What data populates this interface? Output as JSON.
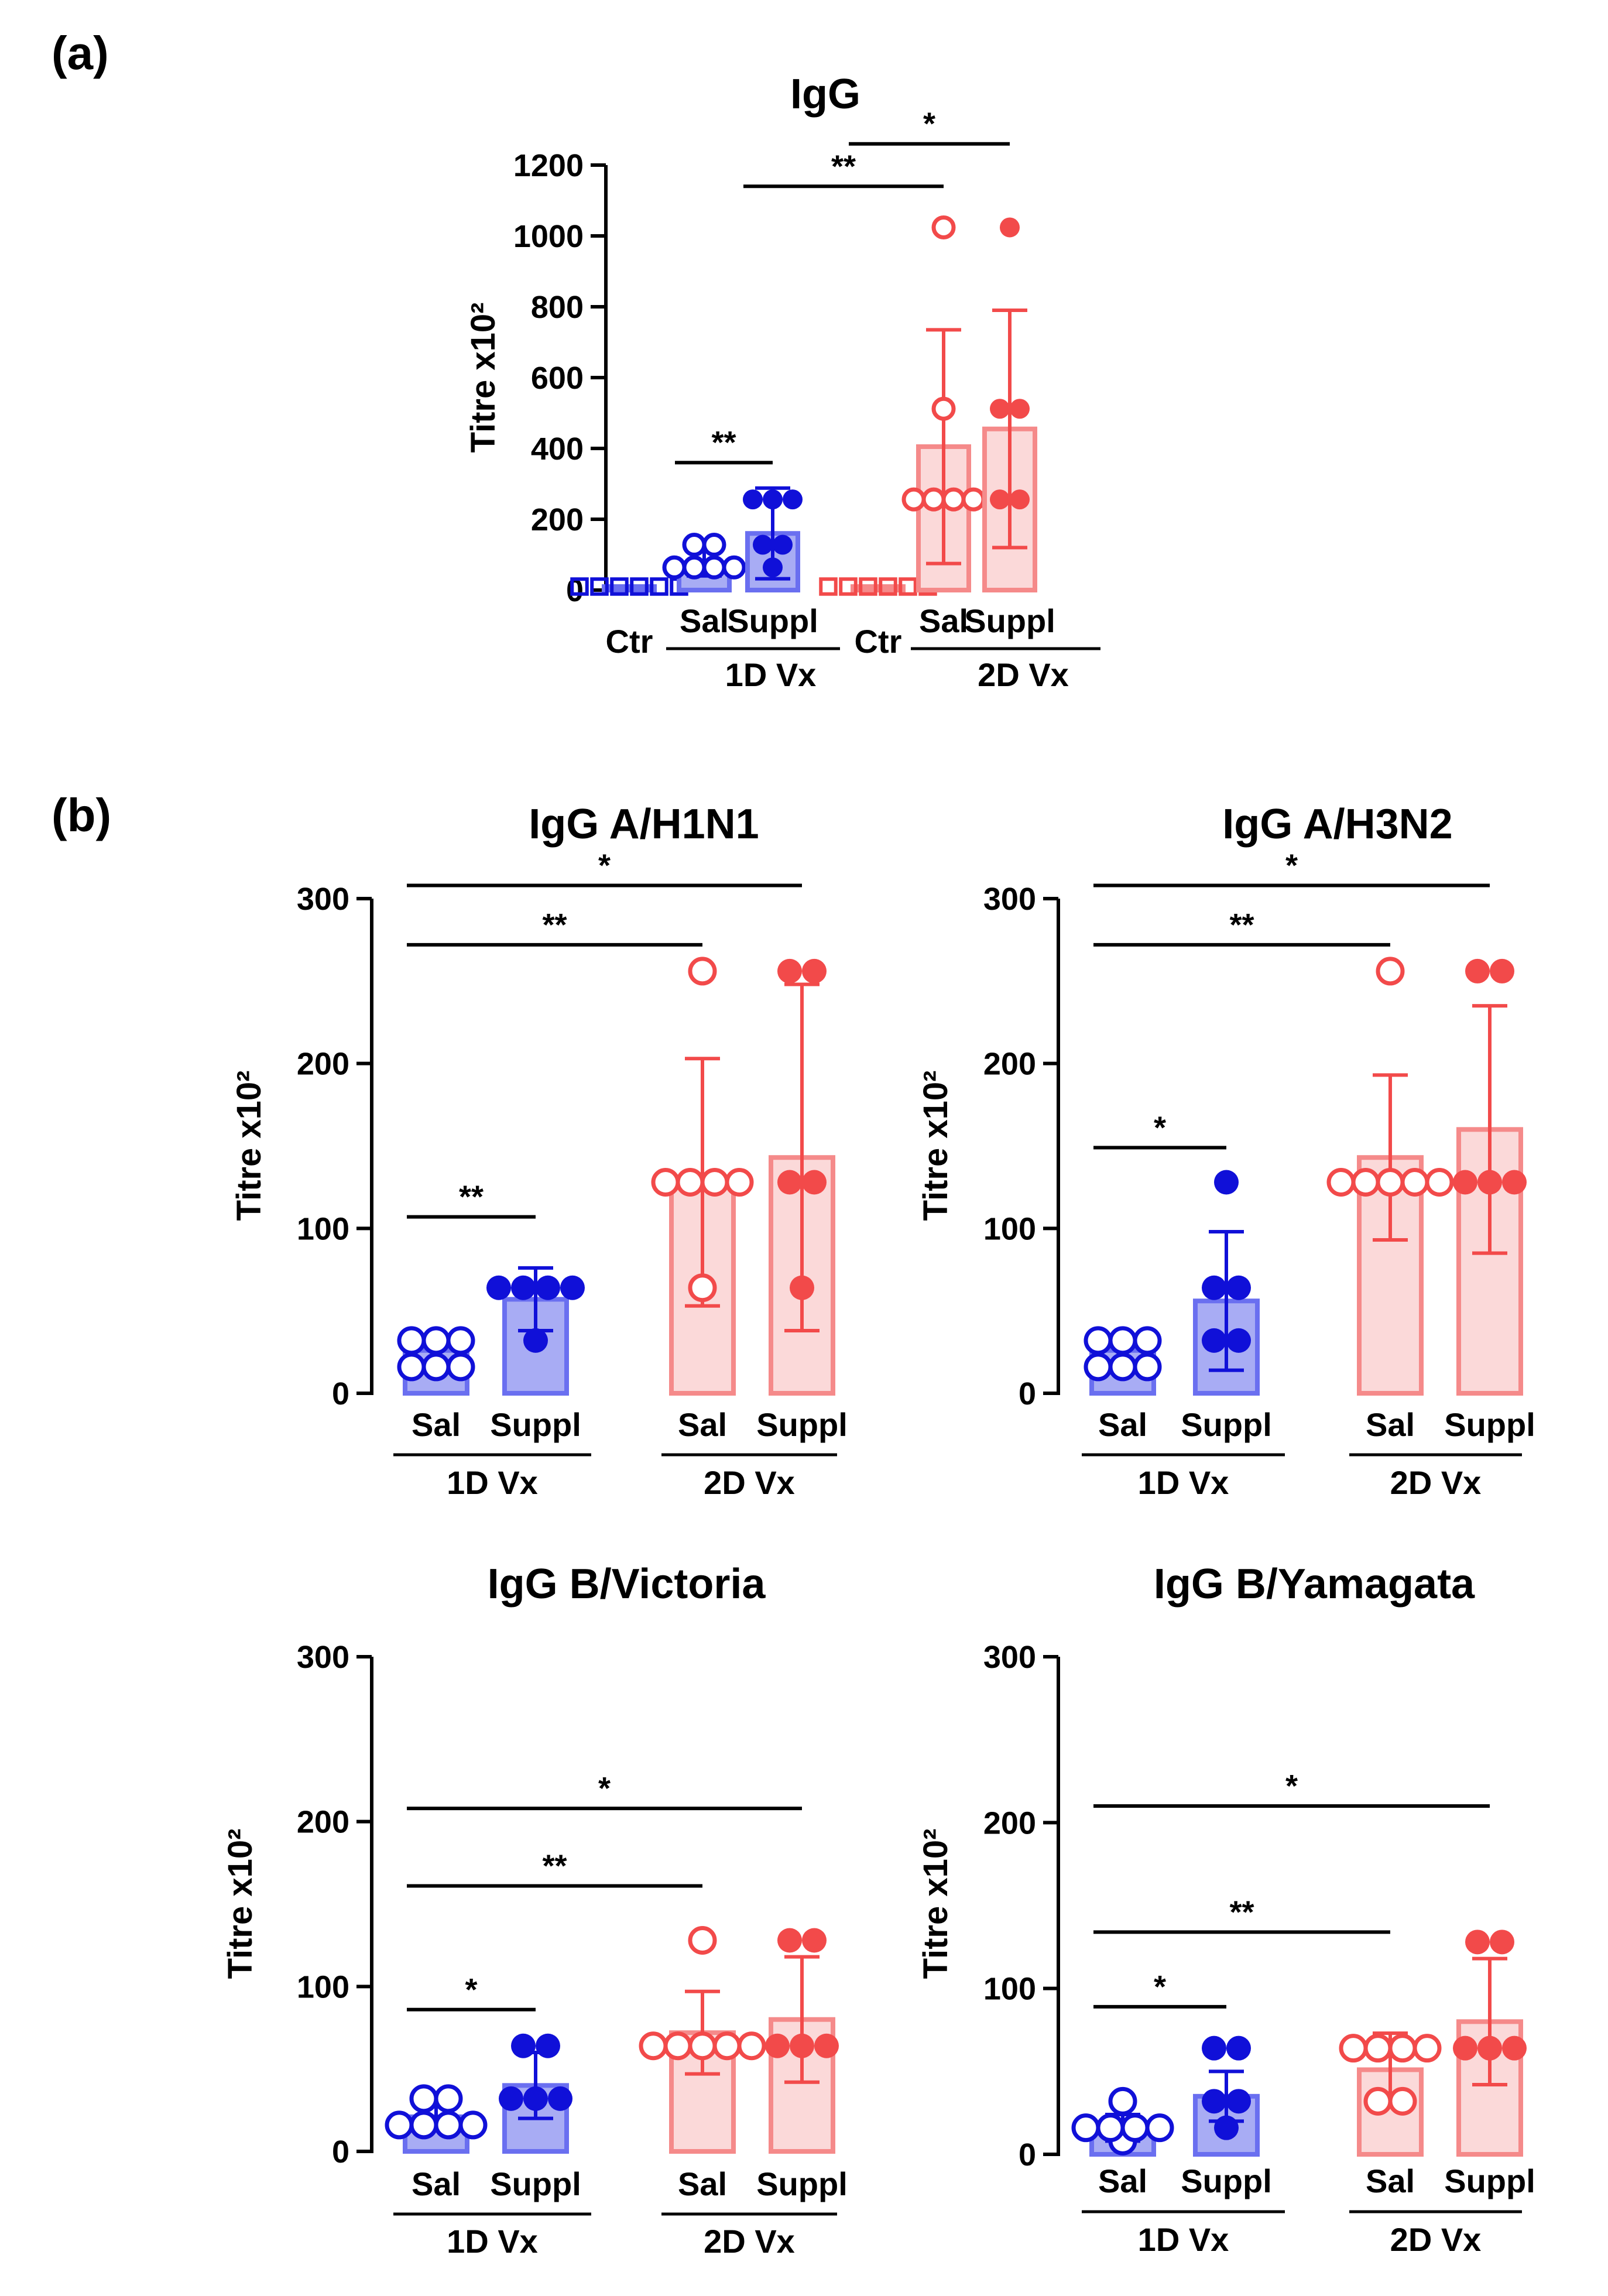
{
  "panel_labels": [
    "(a)",
    "(b)"
  ],
  "colors": {
    "blue": "#1010d8",
    "blue_fill": "#a8acf4",
    "red": "#f24a4a",
    "red_fill": "#fbd9d9",
    "red_stroke": "#f58a8a",
    "axis": "#000000"
  },
  "chart_data": [
    {
      "type": "bar",
      "title": "IgG",
      "panel": "(a)",
      "ylabel": "Titre x10²",
      "ylim": [
        0,
        1200
      ],
      "yticks": [
        0,
        200,
        400,
        600,
        800,
        1000,
        1200
      ],
      "categories": [
        "Ctr",
        "Sal",
        "Suppl",
        "Ctr",
        "Sal",
        "Suppl"
      ],
      "groups": [
        {
          "label": "1D Vx",
          "members": [
            1,
            2
          ]
        },
        {
          "label": "2D Vx",
          "members": [
            4,
            5
          ]
        }
      ],
      "series": [
        {
          "name": "1D Ctr",
          "color": "blue",
          "marker": "square-hollow",
          "mean": 10,
          "sd": 0,
          "points": [
            10,
            10,
            10,
            10,
            10,
            10
          ]
        },
        {
          "name": "1D Sal",
          "color": "blue",
          "marker": "hollow",
          "mean": 75,
          "sd": 35,
          "points": [
            64,
            64,
            64,
            64,
            128,
            128
          ]
        },
        {
          "name": "1D Suppl",
          "color": "blue",
          "marker": "filled",
          "mean": 160,
          "sd": 128,
          "points": [
            64,
            128,
            128,
            256,
            256,
            256
          ]
        },
        {
          "name": "2D Ctr",
          "color": "red",
          "marker": "square-hollow",
          "mean": 10,
          "sd": 0,
          "points": [
            10,
            10,
            10,
            10,
            10,
            10
          ]
        },
        {
          "name": "2D Sal",
          "color": "red",
          "marker": "hollow",
          "mean": 405,
          "sd": 330,
          "points": [
            256,
            256,
            256,
            256,
            512,
            1024
          ]
        },
        {
          "name": "2D Suppl",
          "color": "red",
          "marker": "filled",
          "mean": 455,
          "sd": 335,
          "points": [
            256,
            256,
            512,
            512,
            1024
          ]
        }
      ],
      "significance": [
        {
          "from": 1,
          "to": 2,
          "label": "**",
          "y": 360
        },
        {
          "from": 2,
          "to": 4,
          "label": "**",
          "y": 1140
        },
        {
          "from": 3,
          "to": 5,
          "label": "*",
          "y": 1260
        }
      ]
    },
    {
      "type": "bar",
      "title": "IgG A/H1N1",
      "panel": "(b)",
      "ylabel": "Titre x10²",
      "ylim": [
        0,
        300
      ],
      "yticks": [
        0,
        100,
        200,
        300
      ],
      "categories": [
        "Sal",
        "Suppl",
        "Sal",
        "Suppl"
      ],
      "groups": [
        {
          "label": "1D Vx",
          "members": [
            0,
            1
          ]
        },
        {
          "label": "2D Vx",
          "members": [
            2,
            3
          ]
        }
      ],
      "series": [
        {
          "name": "1D Sal",
          "color": "blue",
          "marker": "hollow",
          "mean": 26,
          "sd": 8,
          "points": [
            16,
            16,
            16,
            32,
            32,
            32
          ]
        },
        {
          "name": "1D Suppl",
          "color": "blue",
          "marker": "filled",
          "mean": 57,
          "sd": 19,
          "points": [
            32,
            64,
            64,
            64,
            64
          ]
        },
        {
          "name": "2D Sal",
          "color": "red",
          "marker": "hollow",
          "mean": 128,
          "sd": 75,
          "points": [
            64,
            128,
            128,
            128,
            128,
            256
          ]
        },
        {
          "name": "2D Suppl",
          "color": "red",
          "marker": "filled",
          "mean": 143,
          "sd": 105,
          "points": [
            64,
            128,
            128,
            256,
            256
          ]
        }
      ],
      "significance": [
        {
          "from": 0,
          "to": 1,
          "label": "**",
          "y": 107
        },
        {
          "from": 0,
          "to": 2,
          "label": "**",
          "y": 272
        },
        {
          "from": 0,
          "to": 3,
          "label": "*",
          "y": 308
        }
      ]
    },
    {
      "type": "bar",
      "title": "IgG A/H3N2",
      "panel": "(b)",
      "ylabel": "Titre x10²",
      "ylim": [
        0,
        300
      ],
      "yticks": [
        0,
        100,
        200,
        300
      ],
      "categories": [
        "Sal",
        "Suppl",
        "Sal",
        "Suppl"
      ],
      "groups": [
        {
          "label": "1D Vx",
          "members": [
            0,
            1
          ]
        },
        {
          "label": "2D Vx",
          "members": [
            2,
            3
          ]
        }
      ],
      "series": [
        {
          "name": "1D Sal",
          "color": "blue",
          "marker": "hollow",
          "mean": 26,
          "sd": 8,
          "points": [
            16,
            16,
            16,
            32,
            32,
            32
          ]
        },
        {
          "name": "1D Suppl",
          "color": "blue",
          "marker": "filled",
          "mean": 56,
          "sd": 42,
          "points": [
            32,
            32,
            64,
            64,
            128
          ]
        },
        {
          "name": "2D Sal",
          "color": "red",
          "marker": "hollow",
          "mean": 143,
          "sd": 50,
          "points": [
            128,
            128,
            128,
            128,
            128,
            256
          ]
        },
        {
          "name": "2D Suppl",
          "color": "red",
          "marker": "filled",
          "mean": 160,
          "sd": 75,
          "points": [
            128,
            128,
            128,
            256,
            256
          ]
        }
      ],
      "significance": [
        {
          "from": 0,
          "to": 1,
          "label": "*",
          "y": 149
        },
        {
          "from": 0,
          "to": 2,
          "label": "**",
          "y": 272
        },
        {
          "from": 0,
          "to": 3,
          "label": "*",
          "y": 308
        }
      ]
    },
    {
      "type": "bar",
      "title": "IgG B/Victoria",
      "panel": "(b)",
      "ylabel": "Titre x10²",
      "ylim": [
        0,
        300
      ],
      "yticks": [
        0,
        100,
        200,
        300
      ],
      "categories": [
        "Sal",
        "Suppl",
        "Sal",
        "Suppl"
      ],
      "groups": [
        {
          "label": "1D Vx",
          "members": [
            0,
            1
          ]
        },
        {
          "label": "2D Vx",
          "members": [
            2,
            3
          ]
        }
      ],
      "series": [
        {
          "name": "1D Sal",
          "color": "blue",
          "marker": "hollow",
          "mean": 21,
          "sd": 8,
          "points": [
            16,
            16,
            16,
            16,
            32,
            32
          ]
        },
        {
          "name": "1D Suppl",
          "color": "blue",
          "marker": "filled",
          "mean": 40,
          "sd": 20,
          "points": [
            32,
            32,
            32,
            64,
            64
          ]
        },
        {
          "name": "2D Sal",
          "color": "red",
          "marker": "hollow",
          "mean": 72,
          "sd": 25,
          "points": [
            64,
            64,
            64,
            64,
            64,
            128
          ]
        },
        {
          "name": "2D Suppl",
          "color": "red",
          "marker": "filled",
          "mean": 80,
          "sd": 38,
          "points": [
            64,
            64,
            64,
            128,
            128
          ]
        }
      ],
      "significance": [
        {
          "from": 0,
          "to": 1,
          "label": "*",
          "y": 86
        },
        {
          "from": 0,
          "to": 2,
          "label": "**",
          "y": 161
        },
        {
          "from": 0,
          "to": 3,
          "label": "*",
          "y": 208
        }
      ]
    },
    {
      "type": "bar",
      "title": "IgG B/Yamagata",
      "panel": "(b)",
      "ylabel": "Titre x10²",
      "ylim": [
        0,
        300
      ],
      "yticks": [
        0,
        100,
        200,
        300
      ],
      "categories": [
        "Sal",
        "Suppl",
        "Sal",
        "Suppl"
      ],
      "groups": [
        {
          "label": "1D Vx",
          "members": [
            0,
            1
          ]
        },
        {
          "label": "2D Vx",
          "members": [
            2,
            3
          ]
        }
      ],
      "series": [
        {
          "name": "1D Sal",
          "color": "blue",
          "marker": "hollow",
          "mean": 16,
          "sd": 8,
          "points": [
            8,
            16,
            16,
            16,
            16,
            32
          ]
        },
        {
          "name": "1D Suppl",
          "color": "blue",
          "marker": "filled",
          "mean": 35,
          "sd": 15,
          "points": [
            16,
            32,
            32,
            64,
            64
          ]
        },
        {
          "name": "2D Sal",
          "color": "red",
          "marker": "hollow",
          "mean": 51,
          "sd": 22,
          "points": [
            32,
            32,
            64,
            64,
            64,
            64
          ]
        },
        {
          "name": "2D Suppl",
          "color": "red",
          "marker": "filled",
          "mean": 80,
          "sd": 38,
          "points": [
            64,
            64,
            64,
            128,
            128
          ]
        }
      ],
      "significance": [
        {
          "from": 0,
          "to": 1,
          "label": "*",
          "y": 89
        },
        {
          "from": 0,
          "to": 2,
          "label": "**",
          "y": 134
        },
        {
          "from": 0,
          "to": 3,
          "label": "*",
          "y": 210
        }
      ]
    }
  ]
}
